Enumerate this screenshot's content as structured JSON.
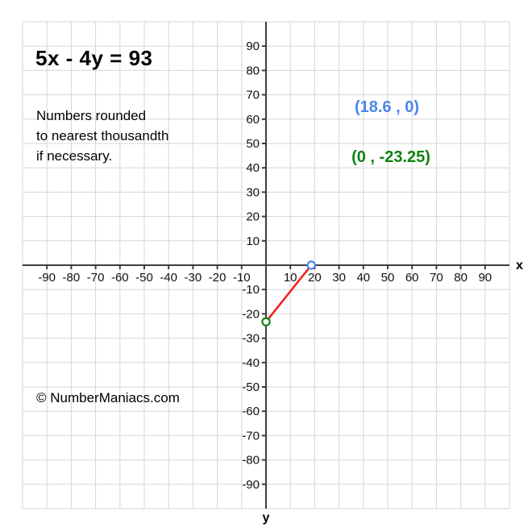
{
  "chart_data": {
    "type": "line",
    "title": "5x - 4y = 93",
    "note_lines": [
      "Numbers rounded",
      "to nearest thousandth",
      "if necessary."
    ],
    "copyright": "© NumberManiacs.com",
    "xlabel": "x",
    "ylabel": "y",
    "xlim": [
      -100,
      100
    ],
    "ylim": [
      -100,
      100
    ],
    "grid": true,
    "tick_step": 10,
    "x_ticks": [
      -90,
      -80,
      -70,
      -60,
      -50,
      -40,
      -30,
      -20,
      -10,
      10,
      20,
      30,
      40,
      50,
      60,
      70,
      80,
      90
    ],
    "y_ticks": [
      90,
      80,
      70,
      60,
      50,
      40,
      30,
      20,
      10,
      -10,
      -20,
      -30,
      -40,
      -50,
      -60,
      -70,
      -80,
      -90
    ],
    "series": [
      {
        "name": "segment-between-intercepts",
        "points": [
          [
            0,
            -23.25
          ],
          [
            18.6,
            0
          ]
        ],
        "color": "#ee2222"
      }
    ],
    "points": [
      {
        "name": "x-intercept",
        "x": 18.6,
        "y": 0,
        "label": "(18.6 , 0)",
        "color": "#4a86e8"
      },
      {
        "name": "y-intercept",
        "x": 0,
        "y": -23.25,
        "label": "(0 , -23.25)",
        "color": "#0e830e"
      }
    ],
    "colors": {
      "axis": "#3d3d3d",
      "grid": "#d6d6d6",
      "tick_text": "#121212",
      "point_fill": "#ffffff"
    }
  }
}
